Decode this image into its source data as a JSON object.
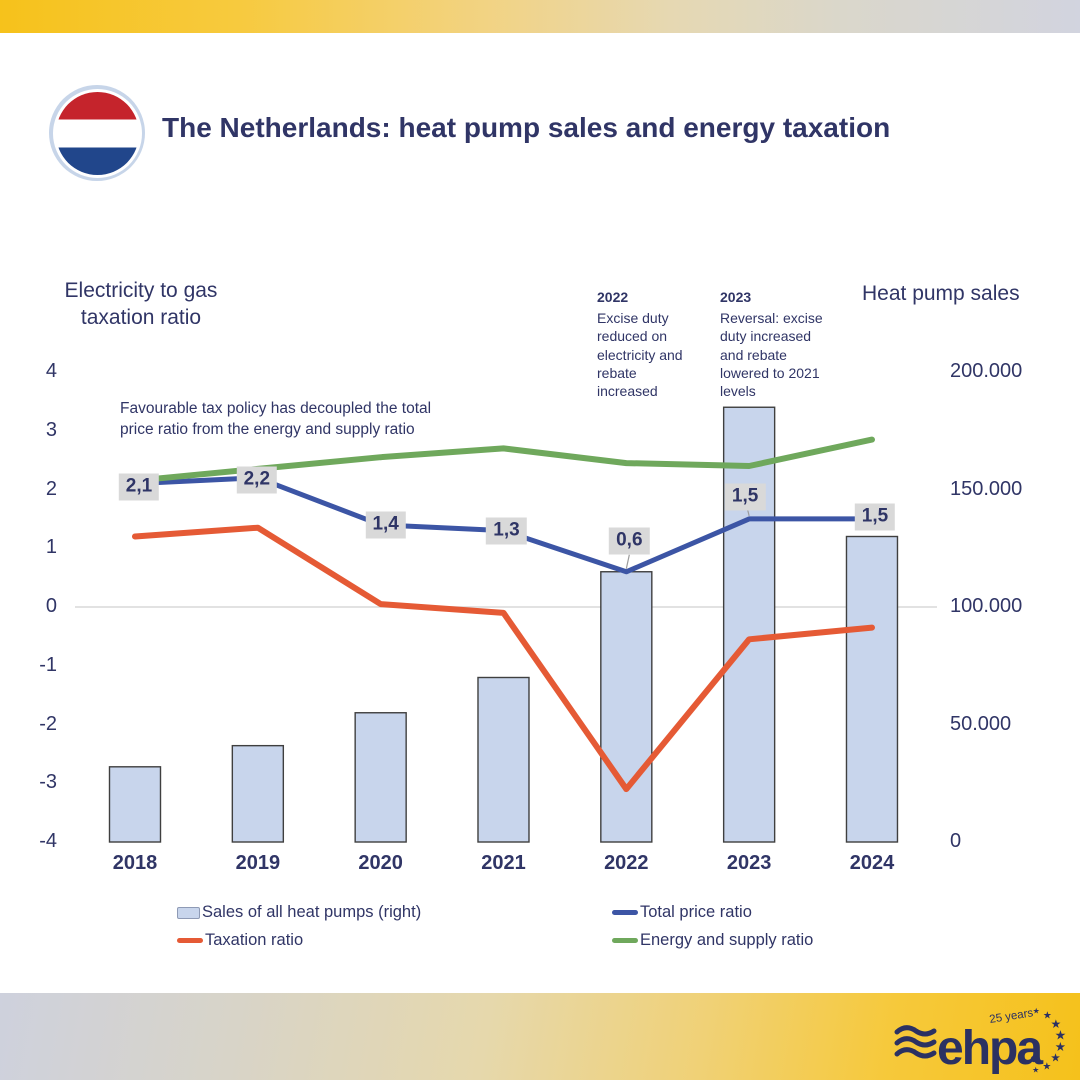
{
  "header": {
    "title": "The Netherlands: heat pump sales and energy taxation",
    "flag": "netherlands-flag",
    "flag_colors": {
      "red": "#C5242C",
      "white": "#FFFFFF",
      "blue": "#21468B",
      "ring": "#C7D5E9"
    }
  },
  "colors": {
    "navy_text": "#303566",
    "bar_fill": "#C8D5EC",
    "bar_border": "#3F3F3F",
    "total_price_ratio": "#3C55A5",
    "taxation_ratio": "#E55A35",
    "energy_supply_ratio": "#6FA85C",
    "label_box": "#D9D9D9",
    "gridline": "#D9D9D9",
    "leader": "#9B9B9B"
  },
  "chart_data": {
    "type": "combo-bar-line",
    "categories": [
      "2018",
      "2019",
      "2020",
      "2021",
      "2022",
      "2023",
      "2024"
    ],
    "left_axis": {
      "title": "Electricity to gas taxation ratio",
      "ticks": [
        "4",
        "3",
        "2",
        "1",
        "0",
        "-1",
        "-2",
        "-3",
        "-4"
      ],
      "range": [
        -4,
        4
      ],
      "grid": "only zero line"
    },
    "right_axis": {
      "title": "Heat pump sales",
      "ticks": [
        "200.000",
        "150.000",
        "100.000",
        "50.000",
        "0"
      ],
      "range": [
        0,
        200000
      ]
    },
    "bar_series": {
      "name": "Sales of all heat pumps (right)",
      "axis": "right",
      "values": [
        32000,
        41000,
        55000,
        70000,
        115000,
        185000,
        130000
      ]
    },
    "line_series": [
      {
        "name": "Total price ratio",
        "axis": "left",
        "color": "#3C55A5",
        "width": 5,
        "values": [
          2.1,
          2.2,
          1.4,
          1.3,
          0.6,
          1.5,
          1.5
        ],
        "labels": [
          "2,1",
          "2,2",
          "1,4",
          "1,3",
          "0,6",
          "1,5",
          "1,5"
        ]
      },
      {
        "name": "Taxation ratio",
        "axis": "left",
        "color": "#E55A35",
        "width": 6,
        "values": [
          1.2,
          1.35,
          0.05,
          -0.1,
          -3.1,
          -0.55,
          -0.35
        ]
      },
      {
        "name": "Energy and supply ratio",
        "axis": "left",
        "color": "#6FA85C",
        "width": 6,
        "values": [
          2.15,
          2.35,
          2.55,
          2.7,
          2.45,
          2.4,
          2.85
        ]
      }
    ],
    "legend_position": "bottom"
  },
  "annotations": {
    "decoupled": "Favourable tax policy has decoupled the total price ratio from the energy and supply ratio",
    "y2022": {
      "year": "2022",
      "text": "Excise duty reduced on electricity and rebate increased"
    },
    "y2023": {
      "year": "2023",
      "text": "Reversal: excise duty increased and rebate lowered to 2021 levels"
    }
  },
  "legend": {
    "items": [
      {
        "label": "Sales of all heat pumps (right)",
        "swatch": "bar"
      },
      {
        "label": "Total price ratio",
        "swatch": "line",
        "color": "#3C55A5"
      },
      {
        "label": "Taxation ratio",
        "swatch": "line",
        "color": "#E55A35"
      },
      {
        "label": "Energy and supply ratio",
        "swatch": "line",
        "color": "#6FA85C"
      }
    ]
  },
  "footer": {
    "logo": {
      "brand": "ehpa",
      "tagline": "25 years"
    }
  }
}
